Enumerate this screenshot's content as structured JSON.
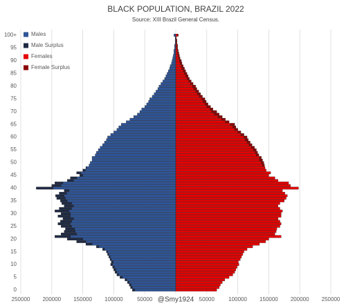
{
  "chart_data": {
    "type": "population-pyramid",
    "title": "BLACK POPULATION, BRAZIL 2022",
    "subtitle": "Source: XIII Brazil General Census.",
    "annotation": "@Smy1924",
    "categories": [
      "0",
      null,
      null,
      null,
      null,
      "5",
      null,
      null,
      null,
      null,
      "10",
      null,
      null,
      null,
      null,
      "15",
      null,
      null,
      null,
      null,
      "20",
      null,
      null,
      null,
      null,
      "25",
      null,
      null,
      null,
      null,
      "30",
      null,
      null,
      null,
      null,
      "35",
      null,
      null,
      null,
      null,
      "40",
      null,
      null,
      null,
      null,
      "45",
      null,
      null,
      null,
      null,
      "50",
      null,
      null,
      null,
      null,
      "55",
      null,
      null,
      null,
      null,
      "60",
      null,
      null,
      null,
      null,
      "65",
      null,
      null,
      null,
      null,
      "70",
      null,
      null,
      null,
      null,
      "75",
      null,
      null,
      null,
      null,
      "80",
      null,
      null,
      null,
      null,
      "85",
      null,
      null,
      null,
      null,
      "90",
      null,
      null,
      null,
      null,
      "95",
      null,
      null,
      null,
      null,
      "100+"
    ],
    "xlim": [
      -250000,
      250000
    ],
    "xticks": [
      {
        "value": -250000,
        "label": "250000"
      },
      {
        "value": -200000,
        "label": "200000"
      },
      {
        "value": -150000,
        "label": "150000"
      },
      {
        "value": -100000,
        "label": "100000"
      },
      {
        "value": -50000,
        "label": "50000"
      },
      0,
      50000,
      100000,
      150000,
      200000,
      250000
    ],
    "grid": true,
    "legend": "upper left",
    "series": [
      {
        "name": "Males",
        "side": "left",
        "color": "#2f5597",
        "values": [
          66000,
          70000,
          72000,
          75000,
          79000,
          86000,
          92000,
          95000,
          97000,
          99000,
          102000,
          101000,
          104000,
          106000,
          108000,
          110000,
          115000,
          124000,
          135000,
          145000,
          150000,
          170000,
          160000,
          162000,
          163000,
          168000,
          170000,
          168000,
          165000,
          170000,
          170000,
          172000,
          168000,
          165000,
          168000,
          175000,
          178000,
          180000,
          176000,
          172000,
          198000,
          185000,
          182000,
          165000,
          160000,
          150000,
          153000,
          146000,
          144000,
          140000,
          138000,
          135000,
          135000,
          130000,
          128000,
          125000,
          122000,
          118000,
          115000,
          112000,
          110000,
          105000,
          100000,
          95000,
          92000,
          88000,
          80000,
          74000,
          68000,
          62000,
          58000,
          55000,
          50000,
          47000,
          44000,
          42000,
          38000,
          35000,
          32000,
          29000,
          27000,
          24000,
          21000,
          18000,
          16000,
          14000,
          12000,
          10000,
          9000,
          7000,
          6000,
          5000,
          4000,
          3000,
          3000,
          2000,
          2000,
          1000,
          1000,
          1000,
          3000
        ]
      },
      {
        "name": "Male Surplus",
        "side": "left",
        "color": "#1f2a44",
        "values": [
          4000,
          3000,
          3000,
          3000,
          3000,
          4000,
          3000,
          3000,
          3000,
          3000,
          3000,
          3000,
          2000,
          2000,
          2000,
          2000,
          3000,
          4000,
          10000,
          15000,
          25000,
          25000,
          25000,
          18000,
          15000,
          17000,
          20000,
          18000,
          17000,
          20000,
          15000,
          23000,
          20000,
          15000,
          16000,
          11000,
          14000,
          14000,
          12000,
          8000,
          27000,
          15000,
          13000,
          10000,
          10000,
          5000,
          7000,
          4000,
          1000,
          0,
          0,
          0,
          0,
          0,
          0,
          0,
          0,
          0,
          0,
          0,
          0,
          0,
          0,
          0,
          0,
          0,
          0,
          0,
          0,
          0,
          0,
          0,
          0,
          0,
          0,
          0,
          0,
          0,
          0,
          0,
          0,
          0,
          0,
          0,
          0,
          0,
          0,
          0,
          0,
          0,
          0,
          0,
          0,
          0,
          0,
          0,
          0,
          0,
          0,
          0,
          0
        ]
      },
      {
        "name": "Females",
        "side": "right",
        "color": "#e50000",
        "values": [
          66000,
          70000,
          72000,
          75000,
          79000,
          86000,
          92000,
          95000,
          97000,
          99000,
          102000,
          101000,
          104000,
          106000,
          108000,
          110000,
          115000,
          124000,
          135000,
          145000,
          150000,
          170000,
          160000,
          162000,
          163000,
          168000,
          170000,
          168000,
          165000,
          170000,
          170000,
          172000,
          168000,
          165000,
          168000,
          175000,
          178000,
          180000,
          176000,
          172000,
          198000,
          185000,
          182000,
          165000,
          160000,
          150000,
          153000,
          146000,
          144000,
          140000,
          138000,
          135000,
          135000,
          130000,
          128000,
          125000,
          122000,
          118000,
          115000,
          112000,
          110000,
          105000,
          100000,
          95000,
          92000,
          88000,
          80000,
          74000,
          68000,
          62000,
          58000,
          55000,
          50000,
          47000,
          44000,
          42000,
          38000,
          35000,
          32000,
          29000,
          27000,
          24000,
          21000,
          18000,
          16000,
          14000,
          12000,
          10000,
          9000,
          7000,
          6000,
          5000,
          4000,
          3000,
          3000,
          2000,
          2000,
          1000,
          1000,
          1000,
          3000
        ]
      },
      {
        "name": "Female Surplus",
        "side": "right",
        "color": "#8b0000",
        "values": [
          0,
          0,
          0,
          0,
          0,
          0,
          0,
          0,
          0,
          0,
          0,
          0,
          0,
          0,
          0,
          0,
          0,
          0,
          0,
          0,
          0,
          0,
          0,
          0,
          0,
          0,
          0,
          0,
          0,
          0,
          0,
          0,
          0,
          0,
          0,
          0,
          0,
          0,
          0,
          0,
          0,
          0,
          0,
          0,
          0,
          0,
          0,
          0,
          0,
          3000,
          4000,
          5000,
          3000,
          4000,
          4000,
          5000,
          5000,
          5000,
          5000,
          5000,
          5000,
          5000,
          5000,
          5000,
          5000,
          7000,
          6000,
          6000,
          7000,
          8000,
          8000,
          5000,
          6000,
          5000,
          5000,
          5000,
          5000,
          5000,
          5000,
          5000,
          5000,
          4000,
          4000,
          4000,
          4000,
          4000,
          4000,
          4000,
          3000,
          3000,
          3000,
          2000,
          2000,
          2000,
          1000,
          1000,
          1000,
          1000,
          1000,
          0,
          1000
        ]
      }
    ]
  }
}
